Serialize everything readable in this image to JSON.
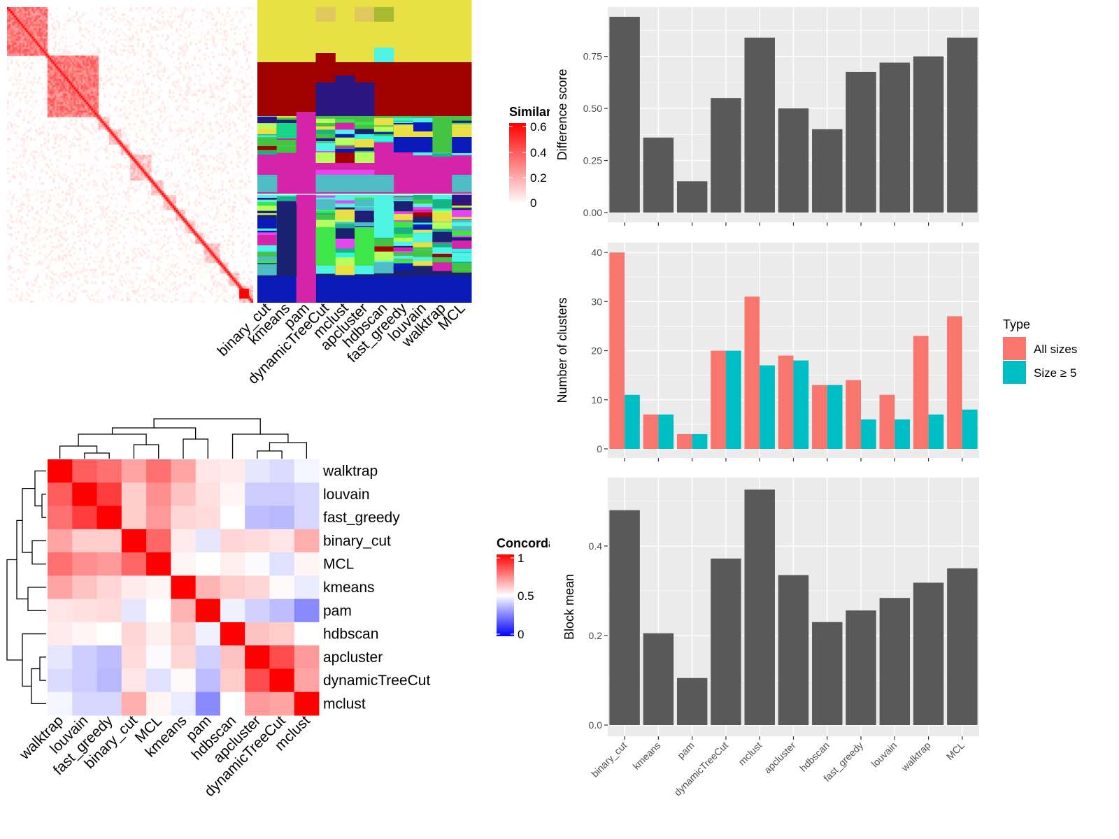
{
  "similarity_heatmap": {
    "legend_title": "Similarity",
    "legend_ticks": [
      "0",
      "0.2",
      "0.4",
      "0.6"
    ],
    "color_low": "#FFFFFF",
    "color_high": "#FF0000",
    "columns": [
      "binary_cut",
      "kmeans",
      "pam",
      "dynamicTreeCut",
      "mclust",
      "apcluster",
      "hdbscan",
      "fast_greedy",
      "louvain",
      "walktrap",
      "MCL"
    ]
  },
  "concordance_heatmap": {
    "legend_title": "Concordance",
    "legend_ticks": [
      "0",
      "0.5",
      "1"
    ],
    "color_low": "#0000FF",
    "color_mid": "#FFFFFF",
    "color_high": "#FF0000",
    "labels": [
      "walktrap",
      "louvain",
      "fast_greedy",
      "binary_cut",
      "MCL",
      "kmeans",
      "pam",
      "hdbscan",
      "apcluster",
      "dynamicTreeCut",
      "mclust"
    ],
    "matrix": [
      [
        1.0,
        0.82,
        0.78,
        0.68,
        0.78,
        0.68,
        0.55,
        0.54,
        0.45,
        0.43,
        0.48
      ],
      [
        0.82,
        1.0,
        0.88,
        0.6,
        0.72,
        0.62,
        0.56,
        0.52,
        0.4,
        0.4,
        0.42
      ],
      [
        0.78,
        0.88,
        1.0,
        0.6,
        0.7,
        0.58,
        0.57,
        0.5,
        0.37,
        0.36,
        0.42
      ],
      [
        0.68,
        0.6,
        0.6,
        1.0,
        0.8,
        0.54,
        0.45,
        0.58,
        0.57,
        0.55,
        0.66
      ],
      [
        0.78,
        0.72,
        0.7,
        0.8,
        1.0,
        0.52,
        0.5,
        0.53,
        0.49,
        0.44,
        0.52
      ],
      [
        0.68,
        0.62,
        0.58,
        0.54,
        0.52,
        1.0,
        0.65,
        0.6,
        0.58,
        0.51,
        0.46
      ],
      [
        0.55,
        0.56,
        0.57,
        0.45,
        0.5,
        0.65,
        1.0,
        0.47,
        0.41,
        0.37,
        0.27
      ],
      [
        0.54,
        0.52,
        0.5,
        0.58,
        0.53,
        0.6,
        0.47,
        1.0,
        0.62,
        0.6,
        0.5
      ],
      [
        0.45,
        0.4,
        0.37,
        0.57,
        0.49,
        0.58,
        0.41,
        0.62,
        1.0,
        0.85,
        0.7
      ],
      [
        0.43,
        0.4,
        0.36,
        0.55,
        0.44,
        0.51,
        0.37,
        0.6,
        0.85,
        1.0,
        0.68
      ],
      [
        0.48,
        0.42,
        0.42,
        0.66,
        0.52,
        0.46,
        0.27,
        0.5,
        0.7,
        0.68,
        1.0
      ]
    ]
  },
  "chart_data": [
    {
      "type": "bar",
      "ylabel": "Difference score",
      "categories": [
        "binary_cut",
        "kmeans",
        "pam",
        "dynamicTreeCut",
        "mclust",
        "apcluster",
        "hdbscan",
        "fast_greedy",
        "louvain",
        "walktrap",
        "MCL"
      ],
      "values": [
        0.94,
        0.36,
        0.15,
        0.55,
        0.84,
        0.5,
        0.4,
        0.675,
        0.72,
        0.75,
        0.84
      ],
      "yticks": [
        "0.00",
        "0.25",
        "0.50",
        "0.75"
      ],
      "ylim": [
        -0.047,
        0.987
      ],
      "bar_color": "#595959",
      "panel_color": "#EBEBEB",
      "grid": true
    },
    {
      "type": "bar",
      "ylabel": "Number of clusters",
      "categories": [
        "binary_cut",
        "kmeans",
        "pam",
        "dynamicTreeCut",
        "mclust",
        "apcluster",
        "hdbscan",
        "fast_greedy",
        "louvain",
        "walktrap",
        "MCL"
      ],
      "series": [
        {
          "name": "All sizes",
          "color": "#F8766D",
          "values": [
            40,
            7,
            3,
            20,
            31,
            19,
            13,
            14,
            11,
            23,
            27
          ]
        },
        {
          "name": "Size ≥ 5",
          "color": "#00BFC4",
          "values": [
            11,
            7,
            3,
            20,
            17,
            18,
            13,
            6,
            6,
            7,
            8
          ]
        }
      ],
      "yticks": [
        "0",
        "10",
        "20",
        "30",
        "40"
      ],
      "ylim": [
        -1.85,
        42
      ],
      "legend_title": "Type",
      "legend_position": "right",
      "panel_color": "#EBEBEB",
      "grid": true
    },
    {
      "type": "bar",
      "ylabel": "Block mean",
      "categories": [
        "binary_cut",
        "kmeans",
        "pam",
        "dynamicTreeCut",
        "mclust",
        "apcluster",
        "hdbscan",
        "fast_greedy",
        "louvain",
        "walktrap",
        "MCL"
      ],
      "values": [
        0.48,
        0.205,
        0.105,
        0.372,
        0.526,
        0.335,
        0.23,
        0.256,
        0.284,
        0.318,
        0.35
      ],
      "yticks": [
        "0.0",
        "0.2",
        "0.4"
      ],
      "ylim": [
        -0.025,
        0.553
      ],
      "bar_color": "#595959",
      "panel_color": "#EBEBEB",
      "grid": true
    }
  ]
}
